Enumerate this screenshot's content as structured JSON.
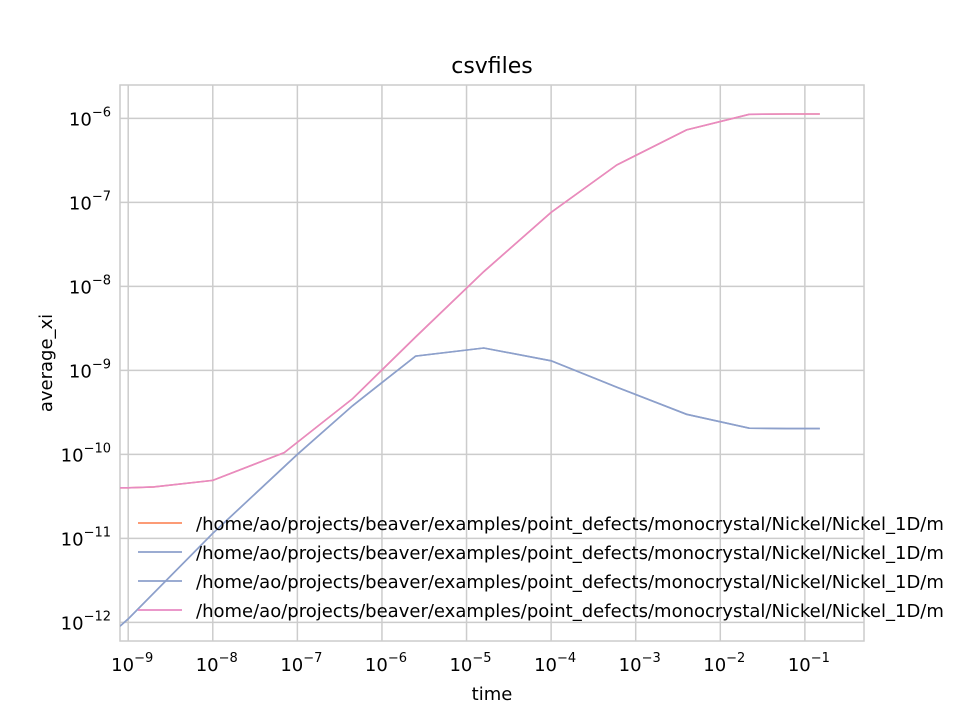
{
  "chart_data": {
    "type": "line",
    "title": "csvfiles",
    "xlabel": "time",
    "ylabel": "average_xi",
    "xscale": "log",
    "yscale": "log",
    "xlim": [
      8e-10,
      0.5
    ],
    "ylim": [
      6e-13,
      2.5e-06
    ],
    "grid": true,
    "legend_position": "lower-left",
    "x_ticks": [
      {
        "value": 1e-09,
        "base": "10",
        "exp": "−9"
      },
      {
        "value": 1e-08,
        "base": "10",
        "exp": "−8"
      },
      {
        "value": 1e-07,
        "base": "10",
        "exp": "−7"
      },
      {
        "value": 1e-06,
        "base": "10",
        "exp": "−6"
      },
      {
        "value": 1e-05,
        "base": "10",
        "exp": "−5"
      },
      {
        "value": 0.0001,
        "base": "10",
        "exp": "−4"
      },
      {
        "value": 0.001,
        "base": "10",
        "exp": "−3"
      },
      {
        "value": 0.01,
        "base": "10",
        "exp": "−2"
      },
      {
        "value": 0.1,
        "base": "10",
        "exp": "−1"
      }
    ],
    "y_ticks": [
      {
        "value": 1e-12,
        "base": "10",
        "exp": "−12"
      },
      {
        "value": 1e-11,
        "base": "10",
        "exp": "−11"
      },
      {
        "value": 1e-10,
        "base": "10",
        "exp": "−10"
      },
      {
        "value": 1e-09,
        "base": "10",
        "exp": "−9"
      },
      {
        "value": 1e-08,
        "base": "10",
        "exp": "−8"
      },
      {
        "value": 1e-07,
        "base": "10",
        "exp": "−7"
      },
      {
        "value": 1e-06,
        "base": "10",
        "exp": "−6"
      }
    ],
    "series": [
      {
        "name": "/home/ao/projects/beaver/examples/point_defects/monocrystal/Nickel/Nickel_1D/m",
        "color": "#fc8d62",
        "x": [
          8e-10,
          1e-09,
          2e-09,
          1e-08,
          7e-08,
          4.5e-07,
          2.5e-06,
          1.6e-05,
          0.0001,
          0.0006,
          0.004,
          0.022,
          0.06,
          0.15
        ],
        "y": [
          4e-11,
          4e-11,
          4.1e-11,
          4.9e-11,
          1.05e-10,
          4.6e-10,
          2.5e-09,
          1.5e-08,
          7.6e-08,
          2.8e-07,
          7.3e-07,
          1.12e-06,
          1.13e-06,
          1.13e-06
        ]
      },
      {
        "name": "/home/ao/projects/beaver/examples/point_defects/monocrystal/Nickel/Nickel_1D/m",
        "color": "#8da0cb",
        "x": [
          8e-10,
          1e-09,
          1e-08,
          1e-07,
          4.5e-07,
          2.5e-06,
          1.6e-05,
          0.0001,
          0.0006,
          0.004,
          0.022,
          0.06,
          0.15
        ],
        "y": [
          9e-13,
          1.1e-12,
          1.15e-11,
          1e-10,
          3.8e-10,
          1.48e-09,
          1.85e-09,
          1.3e-09,
          6.3e-10,
          3e-10,
          2.05e-10,
          2.03e-10,
          2.03e-10
        ]
      },
      {
        "name": "/home/ao/projects/beaver/examples/point_defects/monocrystal/Nickel/Nickel_1D/m",
        "color": "#8da0cb",
        "x": [
          8e-10,
          1e-09,
          1e-08,
          1e-07,
          4.5e-07,
          2.5e-06,
          1.6e-05,
          0.0001,
          0.0006,
          0.004,
          0.022,
          0.06,
          0.15
        ],
        "y": [
          9e-13,
          1.1e-12,
          1.15e-11,
          1e-10,
          3.8e-10,
          1.48e-09,
          1.85e-09,
          1.3e-09,
          6.3e-10,
          3e-10,
          2.05e-10,
          2.03e-10,
          2.03e-10
        ]
      },
      {
        "name": "/home/ao/projects/beaver/examples/point_defects/monocrystal/Nickel/Nickel_1D/m",
        "color": "#e78ac3",
        "x": [
          8e-10,
          1e-09,
          2e-09,
          1e-08,
          7e-08,
          4.5e-07,
          2.5e-06,
          1.6e-05,
          0.0001,
          0.0006,
          0.004,
          0.022,
          0.06,
          0.15
        ],
        "y": [
          4e-11,
          4e-11,
          4.1e-11,
          4.9e-11,
          1.05e-10,
          4.6e-10,
          2.5e-09,
          1.5e-08,
          7.6e-08,
          2.8e-07,
          7.3e-07,
          1.12e-06,
          1.13e-06,
          1.13e-06
        ]
      }
    ]
  }
}
